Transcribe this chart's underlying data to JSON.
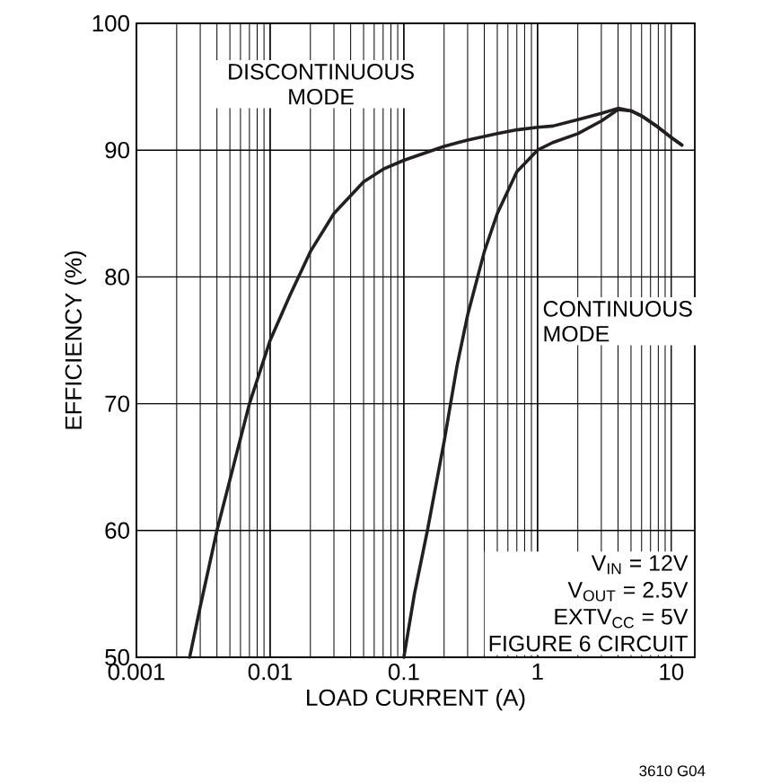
{
  "chart_data": {
    "type": "line",
    "xlabel": "LOAD CURRENT (A)",
    "ylabel": "EFFICIENCY (%)",
    "log": "x",
    "grid": true,
    "xlim": [
      0.001,
      15
    ],
    "ylim": [
      50,
      100
    ],
    "xticks": [
      0.001,
      0.01,
      0.1,
      1,
      10
    ],
    "yticks": [
      50,
      60,
      70,
      80,
      90,
      100
    ],
    "series": [
      {
        "color": "#231f20",
        "x": [
          0.0025,
          0.003,
          0.004,
          0.005,
          0.007,
          0.01,
          0.014,
          0.02,
          0.03,
          0.05,
          0.07,
          0.1,
          0.2,
          0.3,
          0.5,
          0.7,
          1,
          1.3,
          2,
          3,
          4,
          5,
          6,
          8,
          10,
          12
        ],
        "values": [
          50,
          54,
          60,
          64,
          70,
          75,
          78.5,
          82,
          85,
          87.5,
          88.5,
          89.2,
          90.3,
          90.8,
          91.3,
          91.6,
          91.8,
          91.9,
          92.4,
          92.9,
          93.3,
          93.1,
          92.7,
          91.8,
          91,
          90.4
        ]
      },
      {
        "color": "#231f20",
        "x": [
          0.1,
          0.12,
          0.15,
          0.2,
          0.25,
          0.3,
          0.4,
          0.5,
          0.7,
          1,
          1.3,
          2,
          3,
          4,
          5,
          6,
          8,
          10,
          12
        ],
        "values": [
          50,
          55,
          60,
          67,
          73,
          77,
          82,
          85,
          88.3,
          90,
          90.6,
          91.3,
          92.3,
          93.2,
          93.1,
          92.7,
          91.8,
          91,
          90.4
        ]
      }
    ],
    "annotations": [
      "DISCONTINUOUS MODE",
      "CONTINUOUS MODE",
      "V$_{IN}$ = 12V",
      "V$_{OUT}$ = 2.5V",
      "EXTV$_{CC}$ = 5V",
      "FIGURE 6 CIRCUIT",
      "3610 G04"
    ]
  }
}
